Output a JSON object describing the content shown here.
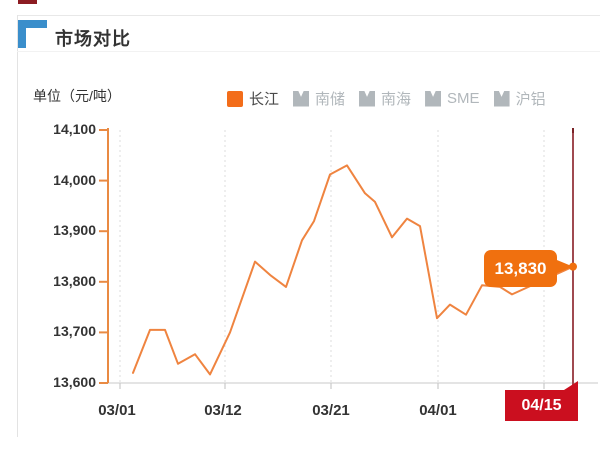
{
  "page": {
    "title": "市场对比"
  },
  "chart": {
    "unit_label": "单位（元/吨）",
    "current_value_label": "13,830",
    "current_date_label": "04/15"
  },
  "chart_data": {
    "type": "line",
    "title": "市场对比",
    "ylabel": "单位（元/吨）",
    "ylim": [
      13600,
      14100
    ],
    "y_ticks": [
      "14,100",
      "14,000",
      "13,900",
      "13,800",
      "13,700",
      "13,600"
    ],
    "x_ticks": [
      "03/01",
      "03/12",
      "03/21",
      "04/01",
      "04/15"
    ],
    "legend": [
      "长江",
      "南储",
      "南海",
      "SME",
      "沪铝"
    ],
    "active_series": "长江",
    "grid": "vertical-dashed",
    "series": [
      {
        "name": "长江",
        "points": [
          [
            133,
            13620
          ],
          [
            150,
            13705
          ],
          [
            165,
            13705
          ],
          [
            178,
            13638
          ],
          [
            195,
            13657
          ],
          [
            210,
            13617
          ],
          [
            230,
            13700
          ],
          [
            255,
            13840
          ],
          [
            271,
            13812
          ],
          [
            286,
            13790
          ],
          [
            302,
            13882
          ],
          [
            314,
            13920
          ],
          [
            330,
            14012
          ],
          [
            347,
            14030
          ],
          [
            365,
            13975
          ],
          [
            375,
            13958
          ],
          [
            392,
            13888
          ],
          [
            407,
            13925
          ],
          [
            420,
            13910
          ],
          [
            437,
            13728
          ],
          [
            450,
            13755
          ],
          [
            466,
            13735
          ],
          [
            482,
            13793
          ],
          [
            500,
            13790
          ],
          [
            512,
            13775
          ],
          [
            573,
            13830
          ]
        ],
        "last_value": 13830,
        "last_date": "04/15"
      }
    ],
    "colors": {
      "line": "#ef8440",
      "axis": "#e98a43",
      "accent_orange": "#f0700f",
      "legend_orange": "#f36d1a",
      "marker_red": "#cb0f1f",
      "ref_line_red": "#a04a50",
      "legend_gray": "#b1b7bb",
      "text": "#333333",
      "header_blue": "#3a8ecb"
    }
  }
}
